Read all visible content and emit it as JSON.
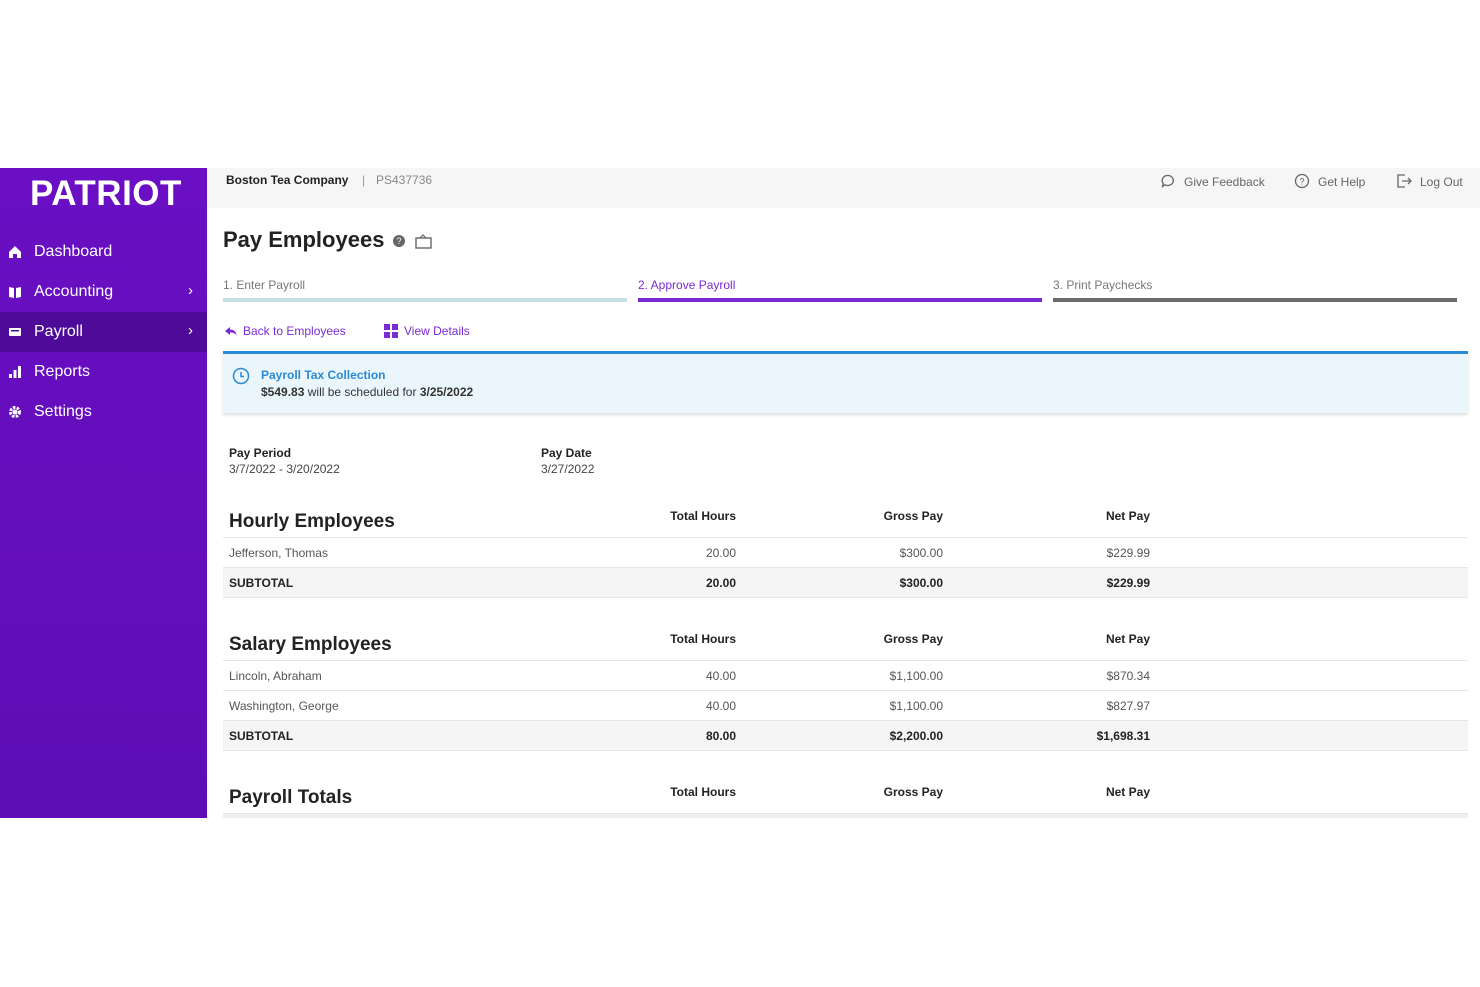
{
  "sidebar": {
    "logo": "PATRIOT",
    "nav": [
      "Dashboard",
      "Accounting",
      "Payroll",
      "Reports",
      "Settings"
    ]
  },
  "header": {
    "company": "Boston Tea Company",
    "separator": "|",
    "account_id": "PS437736",
    "actions": [
      "Give Feedback",
      "Get Help",
      "Log Out"
    ]
  },
  "page": {
    "title": "Pay Employees",
    "steps": [
      "1. Enter Payroll",
      "2. Approve Payroll",
      "3. Print Paychecks"
    ],
    "links": [
      "Back to Employees",
      "View Details"
    ]
  },
  "notice": {
    "title": "Payroll Tax Collection",
    "amount": "$549.83",
    "text": "will be scheduled for",
    "date": "3/25/2022"
  },
  "pay_info": {
    "pay_period_label": "Pay Period",
    "pay_period": "3/7/2022 - 3/20/2022",
    "pay_date_label": "Pay Date",
    "pay_date": "3/27/2022"
  },
  "sections": [
    {
      "title": "Hourly Employees",
      "columns": [
        "Total Hours",
        "Gross Pay",
        "Net Pay"
      ],
      "rows": [
        [
          "Jefferson, Thomas",
          "20.00",
          "$300.00",
          "$229.99"
        ]
      ],
      "subtotal": [
        "SUBTOTAL",
        "20.00",
        "$300.00",
        "$229.99"
      ]
    },
    {
      "title": "Salary Employees",
      "columns": [
        "Total Hours",
        "Gross Pay",
        "Net Pay"
      ],
      "rows": [
        [
          "Lincoln, Abraham",
          "40.00",
          "$1,100.00",
          "$870.34"
        ],
        [
          "Washington, George",
          "40.00",
          "$1,100.00",
          "$827.97"
        ]
      ],
      "subtotal": [
        "SUBTOTAL",
        "80.00",
        "$2,200.00",
        "$1,698.31"
      ]
    },
    {
      "title": "Payroll Totals",
      "columns": [
        "Total Hours",
        "Gross Pay",
        "Net Pay"
      ],
      "rows": []
    }
  ]
}
